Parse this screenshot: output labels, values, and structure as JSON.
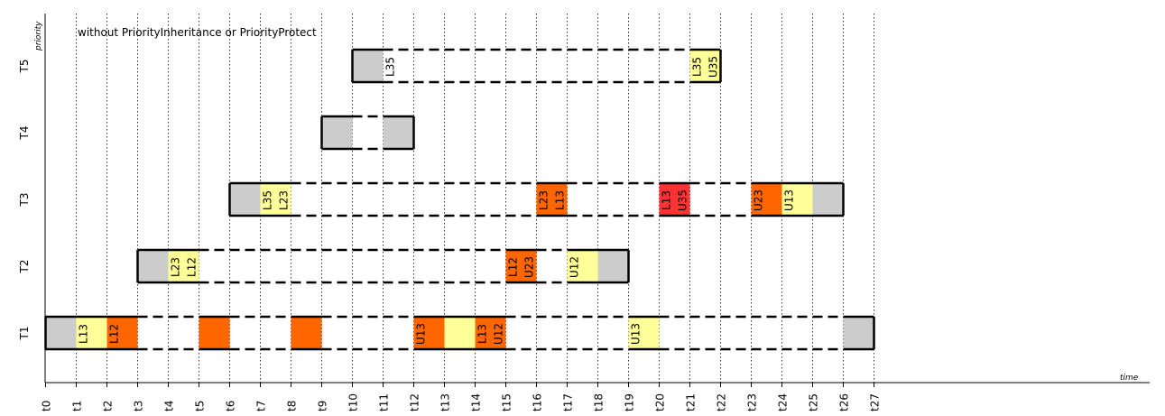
{
  "title": "without PriorityInheritance or PriorityProtect",
  "y_axis_label": "priority",
  "x_axis_label": "time",
  "time_ticks": [
    "t0",
    "t1",
    "t2",
    "t3",
    "t4",
    "t5",
    "t6",
    "t7",
    "t8",
    "t9",
    "t10",
    "t11",
    "t12",
    "t13",
    "t14",
    "t15",
    "t16",
    "t17",
    "t18",
    "t19",
    "t20",
    "t21",
    "t22",
    "t23",
    "t24",
    "t25",
    "t26",
    "t27"
  ],
  "tasks": [
    {
      "name": "T1",
      "life": [
        0,
        27
      ],
      "segments": [
        {
          "start": 0,
          "end": 1,
          "kind": "gray"
        },
        {
          "start": 1,
          "end": 2,
          "kind": "yellow",
          "label": "L13"
        },
        {
          "start": 2,
          "end": 3,
          "kind": "orange",
          "label": "L12"
        },
        {
          "start": 5,
          "end": 6,
          "kind": "orange"
        },
        {
          "start": 8,
          "end": 9,
          "kind": "orange"
        },
        {
          "start": 12,
          "end": 13,
          "kind": "orange",
          "label": "U13"
        },
        {
          "start": 13,
          "end": 14,
          "kind": "yellow"
        },
        {
          "start": 14,
          "end": 15,
          "kind": "orange",
          "label": "L13",
          "label2": "U12"
        },
        {
          "start": 19,
          "end": 20,
          "kind": "yellow",
          "label": "U13"
        },
        {
          "start": 26,
          "end": 27,
          "kind": "gray"
        }
      ]
    },
    {
      "name": "T2",
      "life": [
        3,
        19
      ],
      "segments": [
        {
          "start": 3,
          "end": 4,
          "kind": "gray"
        },
        {
          "start": 4,
          "end": 5,
          "kind": "yellow",
          "label": "L23",
          "label2": "L12"
        },
        {
          "start": 15,
          "end": 16,
          "kind": "orange",
          "label": "L12",
          "label2": "U23"
        },
        {
          "start": 17,
          "end": 18,
          "kind": "yellow",
          "label": "U12"
        },
        {
          "start": 18,
          "end": 19,
          "kind": "gray"
        }
      ]
    },
    {
      "name": "T3",
      "life": [
        6,
        26
      ],
      "segments": [
        {
          "start": 6,
          "end": 7,
          "kind": "gray"
        },
        {
          "start": 7,
          "end": 8,
          "kind": "yellow",
          "label": "L35",
          "label2": "L23"
        },
        {
          "start": 16,
          "end": 17,
          "kind": "orange",
          "label": "L23",
          "label2": "L13"
        },
        {
          "start": 20,
          "end": 21,
          "kind": "red",
          "label": "L13",
          "label2": "U35"
        },
        {
          "start": 23,
          "end": 24,
          "kind": "orange",
          "label": "U23"
        },
        {
          "start": 24,
          "end": 25,
          "kind": "yellow",
          "label": "U13"
        },
        {
          "start": 25,
          "end": 26,
          "kind": "gray"
        }
      ]
    },
    {
      "name": "T4",
      "life": [
        9,
        12
      ],
      "segments": [
        {
          "start": 9,
          "end": 10,
          "kind": "gray"
        },
        {
          "start": 11,
          "end": 12,
          "kind": "gray"
        }
      ]
    },
    {
      "name": "T5",
      "life": [
        10,
        22
      ],
      "segments": [
        {
          "start": 10,
          "end": 11,
          "kind": "gray",
          "label2": "L35"
        },
        {
          "start": 21,
          "end": 22,
          "kind": "yellow",
          "label": "L35",
          "label2": "U35"
        },
        {
          "start": 22,
          "end": 22,
          "kind": "gray"
        }
      ]
    }
  ],
  "colors": {
    "gray": "#cccccc",
    "yellow": "#ffff99",
    "orange": "#ff6600",
    "red": "#ff3333"
  }
}
